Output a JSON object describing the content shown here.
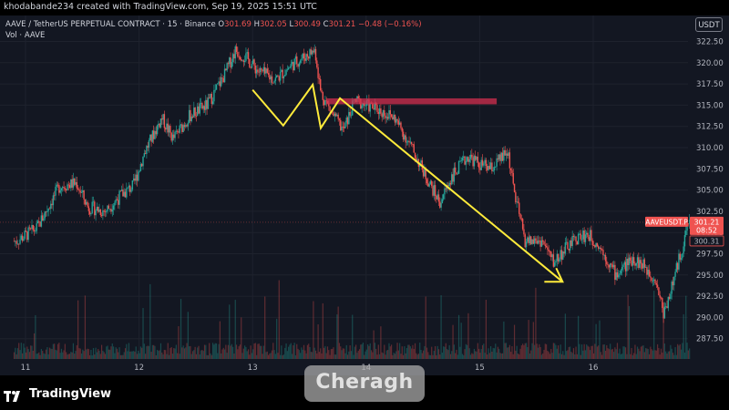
{
  "header": {
    "credit": "khodabande234 created with TradingView.com, Sep 19, 2025 15:51 UTC",
    "symbol": "AAVE / TetherUS PERPETUAL CONTRACT · 15 · Binance",
    "o_label": "O",
    "o_value": "301.69",
    "h_label": "H",
    "h_value": "302.05",
    "l_label": "L",
    "l_value": "300.49",
    "c_label": "C",
    "c_value": "301.21",
    "change": "−0.48 (−0.16%)",
    "vol_label": "Vol · AAVE",
    "currency_button": "USDT"
  },
  "price_tag": {
    "symbol": "AAVEUSDT.P",
    "price": "301.21",
    "countdown": "08:52",
    "secondary": "300.31"
  },
  "footer": {
    "brand": "TradingView",
    "watermark": "Cheragh"
  },
  "colors": {
    "up": "#26a69a",
    "down": "#ef5350",
    "arrow": "#ffeb3b",
    "zone": "#d32f4f",
    "background": "#131722"
  },
  "chart_data": {
    "type": "candlestick",
    "x_ticks": [
      "11",
      "12",
      "13",
      "14",
      "15",
      "16"
    ],
    "y_ticks": [
      "322.50",
      "320.00",
      "317.50",
      "315.00",
      "312.50",
      "310.00",
      "307.50",
      "305.00",
      "302.50",
      "300.00",
      "297.50",
      "295.00",
      "292.50",
      "290.00",
      "287.50"
    ],
    "y_range": [
      286.5,
      323.5
    ],
    "x_range_days": [
      10.9,
      16.85
    ],
    "last_price": 301.21,
    "price_path": [
      [
        10.92,
        299.0
      ],
      [
        11.1,
        300.5
      ],
      [
        11.3,
        305.5
      ],
      [
        11.45,
        305.8
      ],
      [
        11.55,
        303.0
      ],
      [
        11.7,
        302.5
      ],
      [
        11.85,
        304.5
      ],
      [
        11.95,
        305.5
      ],
      [
        12.05,
        309.5
      ],
      [
        12.2,
        313.5
      ],
      [
        12.3,
        311.0
      ],
      [
        12.45,
        313.8
      ],
      [
        12.6,
        315.0
      ],
      [
        12.75,
        318.5
      ],
      [
        12.85,
        321.5
      ],
      [
        12.95,
        320.5
      ],
      [
        13.05,
        319.0
      ],
      [
        13.2,
        318.0
      ],
      [
        13.35,
        319.8
      ],
      [
        13.55,
        321.5
      ],
      [
        13.6,
        316.5
      ],
      [
        13.7,
        314.0
      ],
      [
        13.8,
        312.0
      ],
      [
        13.9,
        315.5
      ],
      [
        14.1,
        314.5
      ],
      [
        14.25,
        313.5
      ],
      [
        14.4,
        310.0
      ],
      [
        14.55,
        306.0
      ],
      [
        14.65,
        303.5
      ],
      [
        14.75,
        306.5
      ],
      [
        14.9,
        309.0
      ],
      [
        15.0,
        308.0
      ],
      [
        15.1,
        307.5
      ],
      [
        15.25,
        309.5
      ],
      [
        15.3,
        305.0
      ],
      [
        15.4,
        299.0
      ],
      [
        15.55,
        299.0
      ],
      [
        15.65,
        296.5
      ],
      [
        15.75,
        298.0
      ],
      [
        15.85,
        299.3
      ],
      [
        15.95,
        299.8
      ],
      [
        16.05,
        298.5
      ],
      [
        16.2,
        295.0
      ],
      [
        16.35,
        297.0
      ],
      [
        16.45,
        296.0
      ],
      [
        16.55,
        294.5
      ],
      [
        16.62,
        290.5
      ],
      [
        16.7,
        294.0
      ],
      [
        16.78,
        298.0
      ],
      [
        16.84,
        301.2
      ]
    ],
    "resistance_zone": {
      "x_start": 13.65,
      "x_end": 15.15,
      "y_low": 315.1,
      "y_high": 315.8
    },
    "annotation_path": [
      [
        13.0,
        316.8
      ],
      [
        13.27,
        312.6
      ],
      [
        13.53,
        317.4
      ],
      [
        13.6,
        312.3
      ],
      [
        13.77,
        315.8
      ],
      [
        15.73,
        294.2
      ]
    ]
  }
}
